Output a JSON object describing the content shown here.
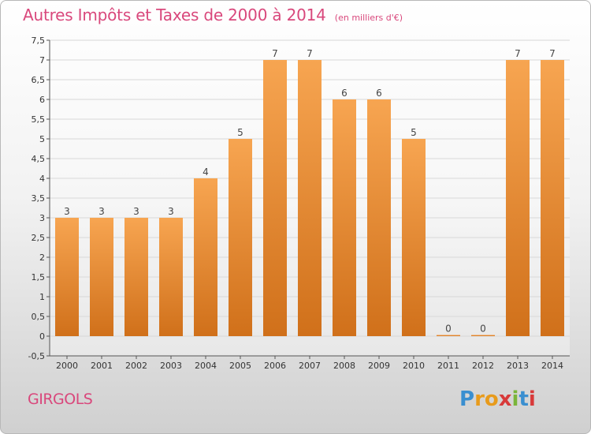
{
  "header": {
    "title": "Autres Impôts et Taxes de 2000 à 2014",
    "unit": "(en milliers d'€)"
  },
  "footer": {
    "city": "GIRGOLS",
    "brand": [
      "P",
      "r",
      "o",
      "x",
      "i",
      "t",
      "i"
    ]
  },
  "colors": {
    "bar_top": "#f7a551",
    "bar_bottom": "#d0701a",
    "title": "#d9487c",
    "grid": "#d8d8d8",
    "brand": [
      "#3a8fd0",
      "#e89b1c",
      "#e89b1c",
      "#d83a3a",
      "#7ab53a",
      "#3a8fd0",
      "#d83a3a"
    ]
  },
  "chart_data": {
    "type": "bar",
    "categories": [
      "2000",
      "2001",
      "2002",
      "2003",
      "2004",
      "2005",
      "2006",
      "2007",
      "2008",
      "2009",
      "2010",
      "2011",
      "2012",
      "2013",
      "2014"
    ],
    "values": [
      3,
      3,
      3,
      3,
      4,
      5,
      7,
      7,
      6,
      6,
      5,
      0,
      0,
      7,
      7
    ],
    "ylim": [
      -0.5,
      7.5
    ],
    "yticks": [
      "-0,5",
      "0",
      "0,5",
      "1",
      "1,5",
      "2",
      "2,5",
      "3",
      "3,5",
      "4",
      "4,5",
      "5",
      "5,5",
      "6",
      "6,5",
      "7",
      "7,5"
    ],
    "grid": true,
    "xlabel": "",
    "ylabel": ""
  }
}
